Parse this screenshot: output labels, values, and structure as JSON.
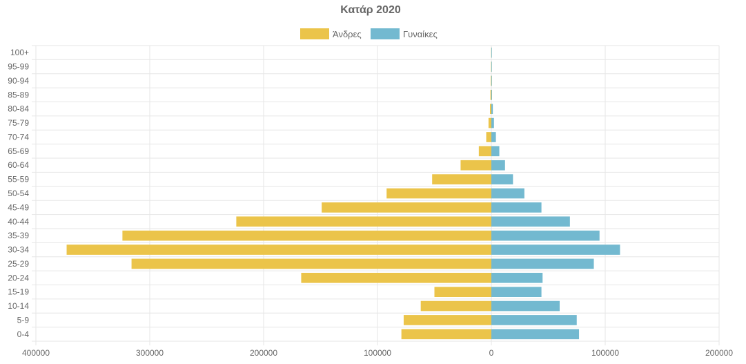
{
  "chart_data": {
    "type": "bar",
    "orientation": "horizontal",
    "title": "Κατάρ 2020",
    "categories": [
      "100+",
      "95-99",
      "90-94",
      "85-89",
      "80-84",
      "75-79",
      "70-74",
      "65-69",
      "60-64",
      "55-59",
      "50-54",
      "45-49",
      "40-44",
      "35-39",
      "30-34",
      "25-29",
      "20-24",
      "15-19",
      "10-14",
      "5-9",
      "0-4"
    ],
    "series": [
      {
        "name": "Άνδρες",
        "color": "#ebc44a",
        "values": [
          -200,
          -300,
          -500,
          -800,
          -1200,
          -2500,
          -4500,
          -11000,
          -27000,
          -52000,
          -92000,
          -149000,
          -224000,
          -324000,
          -373000,
          -316000,
          -167000,
          -50000,
          -62000,
          -77000,
          -79000
        ]
      },
      {
        "name": "Γυναίκες",
        "color": "#73b9d0",
        "values": [
          100,
          200,
          300,
          600,
          1300,
          2300,
          4000,
          7000,
          12000,
          19000,
          29000,
          44000,
          69000,
          95000,
          113000,
          90000,
          45000,
          44000,
          60000,
          75000,
          77000
        ]
      }
    ],
    "xlim": [
      -400000,
      200000
    ],
    "xticks": [
      -400000,
      -300000,
      -200000,
      -100000,
      0,
      100000,
      200000
    ],
    "xtick_labels": [
      "400000",
      "300000",
      "200000",
      "100000",
      "0",
      "100000",
      "200000"
    ],
    "grid": true,
    "legend_position": "top-center"
  }
}
